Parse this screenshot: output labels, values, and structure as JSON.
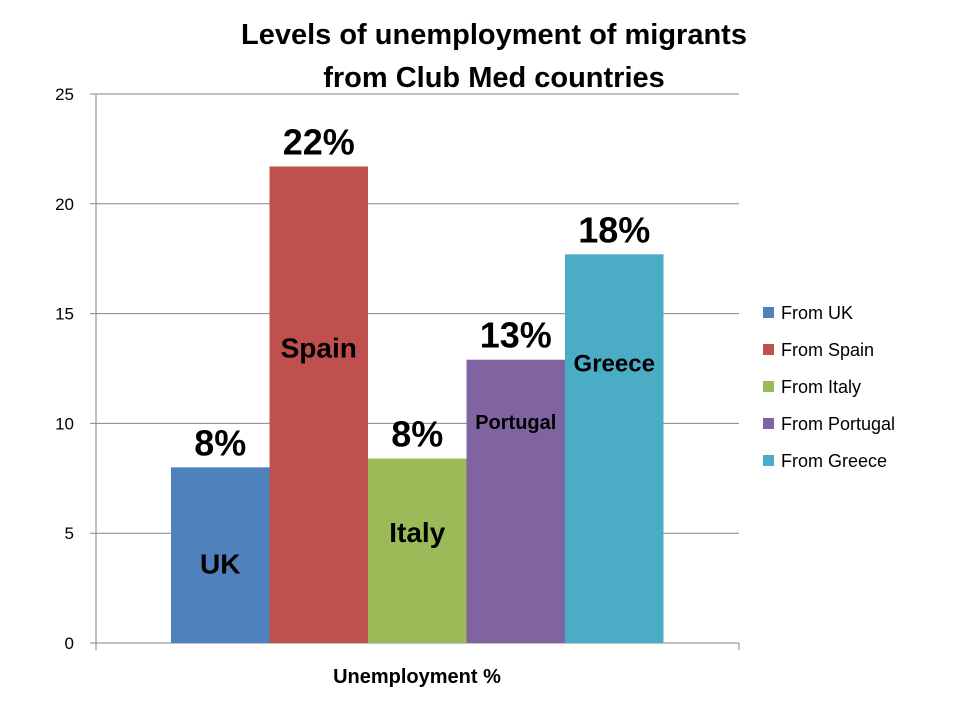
{
  "chart_data": {
    "type": "bar",
    "title_lines": [
      "Levels of unemployment of migrants",
      "from Club Med countries"
    ],
    "xlabel": "Unemployment %",
    "ylabel": "",
    "ylim": [
      0,
      25
    ],
    "yticks": [
      0,
      5,
      10,
      15,
      20,
      25
    ],
    "grid": true,
    "legend_position": "right",
    "series": [
      {
        "name": "From UK",
        "value": 8.0,
        "data_label": "8%",
        "bar_label": "UK",
        "color": "#4f81bd"
      },
      {
        "name": "From Spain",
        "value": 21.7,
        "data_label": "22%",
        "bar_label": "Spain",
        "color": "#c0504d"
      },
      {
        "name": "From Italy",
        "value": 8.4,
        "data_label": "8%",
        "bar_label": "Italy",
        "color": "#9bbb59"
      },
      {
        "name": "From Portugal",
        "value": 12.9,
        "data_label": "13%",
        "bar_label": "Portugal",
        "color": "#8064a2"
      },
      {
        "name": "From Greece",
        "value": 17.7,
        "data_label": "18%",
        "bar_label": "Greece",
        "color": "#4bacc6"
      }
    ]
  }
}
